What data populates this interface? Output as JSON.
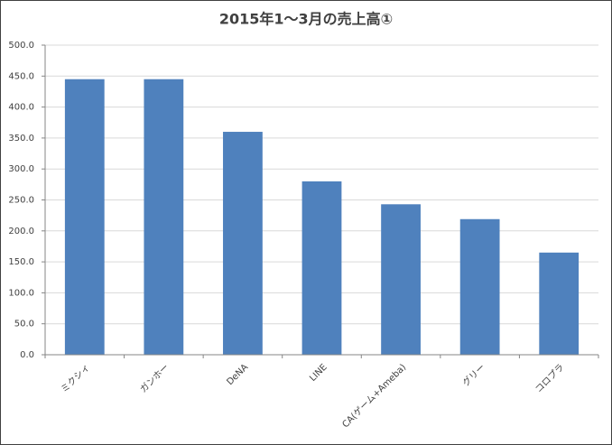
{
  "chart_data": {
    "type": "bar",
    "title": "2015年1〜3月の売上高①",
    "categories": [
      "ミクシィ",
      "ガンホー",
      "DeNA",
      "LINE",
      "CA(ゲーム+Ameba)",
      "グリー",
      "コロプラ"
    ],
    "values": [
      445,
      445,
      360,
      280,
      243,
      219,
      165
    ],
    "color": "#4f81bd",
    "ylim": [
      0,
      500
    ],
    "yticks": [
      {
        "value": 0,
        "label": "0.0"
      },
      {
        "value": 50,
        "label": "50.0"
      },
      {
        "value": 100,
        "label": "100.0"
      },
      {
        "value": 150,
        "label": "150.0"
      },
      {
        "value": 200,
        "label": "200.0"
      },
      {
        "value": 250,
        "label": "250.0"
      },
      {
        "value": 300,
        "label": "300.0"
      },
      {
        "value": 350,
        "label": "350.0"
      },
      {
        "value": 400,
        "label": "400.0"
      },
      {
        "value": 450,
        "label": "450.0"
      },
      {
        "value": 500,
        "label": "500.0"
      }
    ],
    "grid": true
  }
}
